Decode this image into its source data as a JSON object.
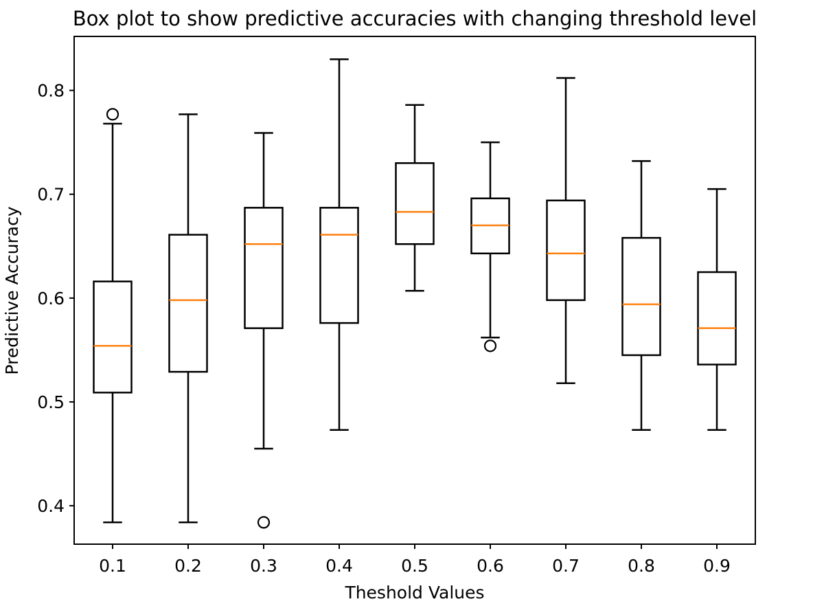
{
  "chart_data": {
    "type": "box",
    "title": "Box plot to show predictive accuracies with changing threshold level",
    "xlabel": "Theshold Values",
    "ylabel": "Predictive Accuracy",
    "categories": [
      "0.1",
      "0.2",
      "0.3",
      "0.4",
      "0.5",
      "0.6",
      "0.7",
      "0.8",
      "0.9"
    ],
    "ylim": [
      0.363,
      0.852
    ],
    "yticks": [
      0.4,
      0.5,
      0.6,
      0.7,
      0.8
    ],
    "ytick_labels": [
      "0.4",
      "0.5",
      "0.6",
      "0.7",
      "0.8"
    ],
    "grid": false,
    "median_color": "#ff7f0e",
    "box_color": "#000000",
    "boxes": [
      {
        "category": "0.1",
        "whisker_low": 0.384,
        "q1": 0.509,
        "median": 0.554,
        "q3": 0.616,
        "whisker_high": 0.768,
        "outliers": [
          0.777
        ]
      },
      {
        "category": "0.2",
        "whisker_low": 0.384,
        "q1": 0.529,
        "median": 0.598,
        "q3": 0.661,
        "whisker_high": 0.777,
        "outliers": []
      },
      {
        "category": "0.3",
        "whisker_low": 0.455,
        "q1": 0.571,
        "median": 0.652,
        "q3": 0.687,
        "whisker_high": 0.759,
        "outliers": [
          0.384
        ]
      },
      {
        "category": "0.4",
        "whisker_low": 0.473,
        "q1": 0.576,
        "median": 0.661,
        "q3": 0.687,
        "whisker_high": 0.83,
        "outliers": []
      },
      {
        "category": "0.5",
        "whisker_low": 0.607,
        "q1": 0.652,
        "median": 0.683,
        "q3": 0.73,
        "whisker_high": 0.786,
        "outliers": []
      },
      {
        "category": "0.6",
        "whisker_low": 0.562,
        "q1": 0.643,
        "median": 0.67,
        "q3": 0.696,
        "whisker_high": 0.75,
        "outliers": [
          0.554
        ]
      },
      {
        "category": "0.7",
        "whisker_low": 0.518,
        "q1": 0.598,
        "median": 0.643,
        "q3": 0.694,
        "whisker_high": 0.812,
        "outliers": []
      },
      {
        "category": "0.8",
        "whisker_low": 0.473,
        "q1": 0.545,
        "median": 0.594,
        "q3": 0.658,
        "whisker_high": 0.732,
        "outliers": []
      },
      {
        "category": "0.9",
        "whisker_low": 0.473,
        "q1": 0.536,
        "median": 0.571,
        "q3": 0.625,
        "whisker_high": 0.705,
        "outliers": []
      }
    ]
  }
}
